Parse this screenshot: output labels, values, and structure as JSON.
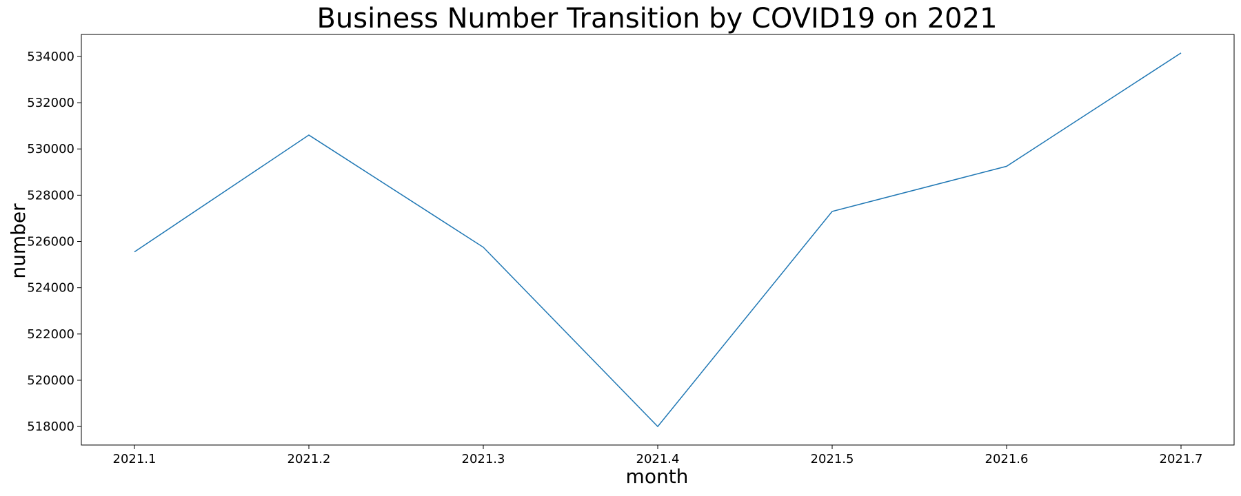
{
  "chart_data": {
    "type": "line",
    "title": "Business Number Transition by COVID19 on 2021",
    "xlabel": "month",
    "ylabel": "number",
    "categories": [
      "2021.1",
      "2021.2",
      "2021.3",
      "2021.4",
      "2021.5",
      "2021.6",
      "2021.7"
    ],
    "series": [
      {
        "values": [
          525550,
          530600,
          525750,
          518000,
          527300,
          529250,
          534150
        ],
        "color": "#1f77b4"
      }
    ],
    "ylim": [
      517200,
      534950
    ],
    "yticks": [
      518000,
      520000,
      522000,
      524000,
      526000,
      528000,
      530000,
      532000,
      534000
    ],
    "grid": false,
    "legend": "none"
  }
}
